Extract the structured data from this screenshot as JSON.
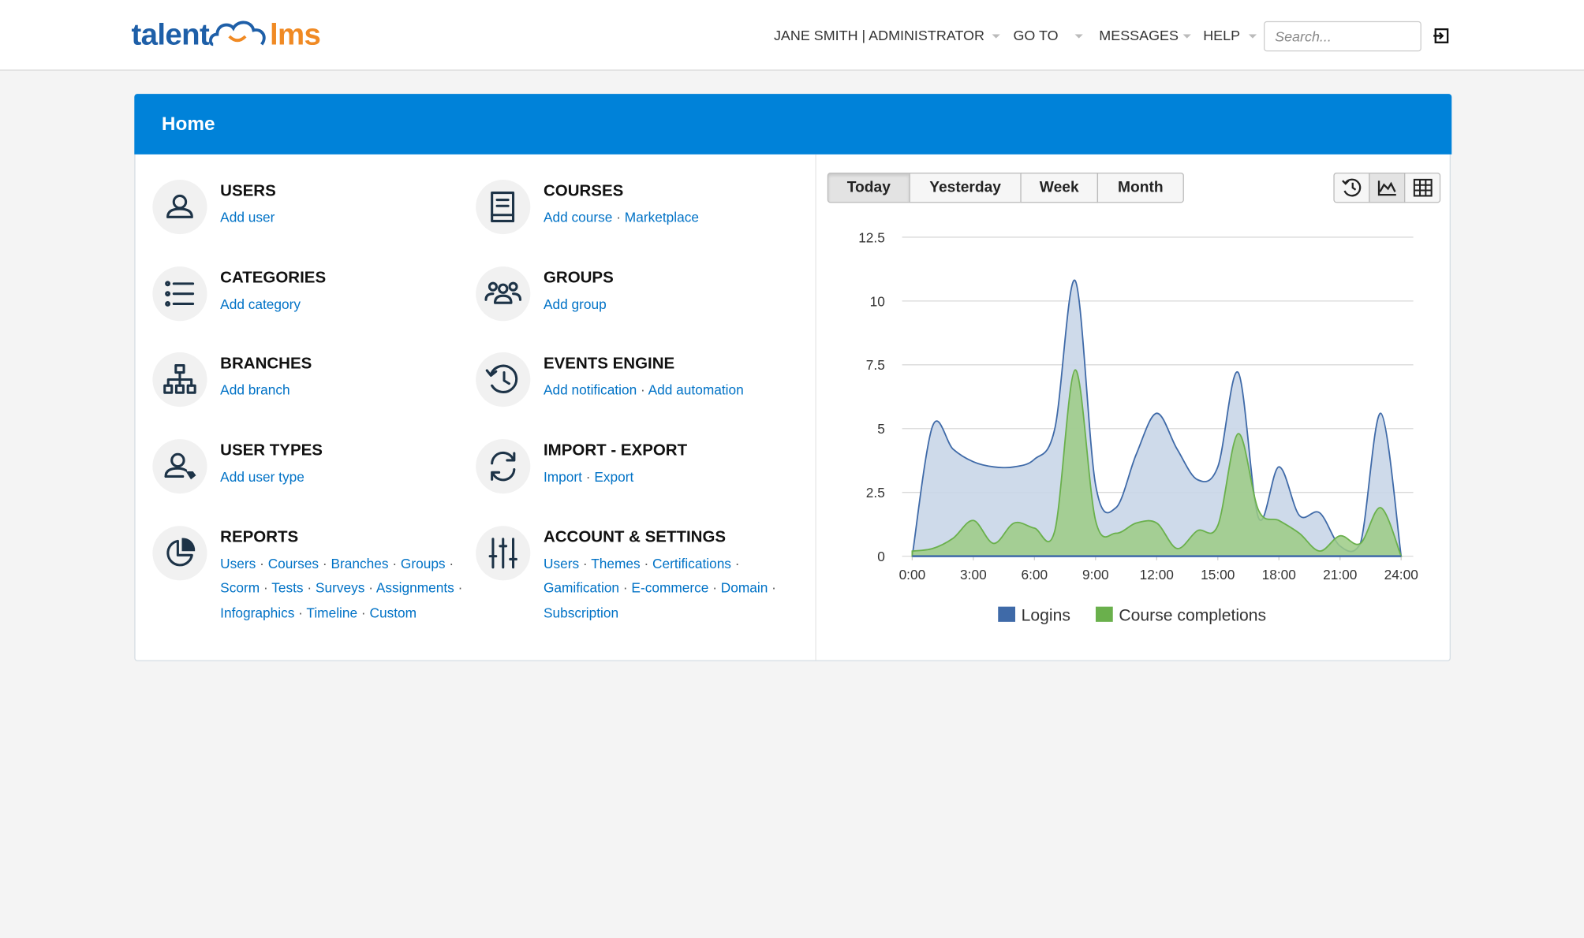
{
  "header": {
    "logo": {
      "left": "talent",
      "right": "lms"
    },
    "nav": [
      "JANE SMITH | ADMINISTRATOR",
      "GO TO",
      "MESSAGES",
      "HELP"
    ],
    "search_placeholder": "Search..."
  },
  "panel": {
    "title": "Home",
    "columns": [
      [
        {
          "title": "USERS",
          "links": [
            "Add user"
          ]
        },
        {
          "title": "CATEGORIES",
          "links": [
            "Add category"
          ]
        },
        {
          "title": "BRANCHES",
          "links": [
            "Add branch"
          ]
        },
        {
          "title": "USER TYPES",
          "links": [
            "Add user type"
          ]
        },
        {
          "title": "REPORTS",
          "links": [
            "Users",
            "Courses",
            "Branches",
            "Groups",
            "Scorm",
            "Tests",
            "Surveys",
            "Assignments",
            "Infographics",
            "Timeline",
            "Custom"
          ]
        }
      ],
      [
        {
          "title": "COURSES",
          "links": [
            "Add course",
            "Marketplace"
          ]
        },
        {
          "title": "GROUPS",
          "links": [
            "Add group"
          ]
        },
        {
          "title": "EVENTS ENGINE",
          "links": [
            "Add notification",
            "Add automation"
          ]
        },
        {
          "title": "IMPORT - EXPORT",
          "links": [
            "Import",
            "Export"
          ]
        },
        {
          "title": "ACCOUNT & SETTINGS",
          "links": [
            "Users",
            "Themes",
            "Certifications",
            "Gamification",
            "E-commerce",
            "Domain",
            "Subscription"
          ]
        }
      ]
    ]
  },
  "chart_controls": {
    "periods": [
      "Today",
      "Yesterday",
      "Week",
      "Month"
    ],
    "active": 0
  },
  "chart_data": {
    "type": "area",
    "x": [
      0,
      1,
      2,
      3,
      4,
      5,
      6,
      7,
      8,
      9,
      10,
      11,
      12,
      13,
      14,
      15,
      16,
      17,
      18,
      19,
      20,
      21,
      22,
      23,
      24
    ],
    "xlim": [
      0,
      24
    ],
    "xticks": [
      {
        "value": 0,
        "label": "0:00"
      },
      {
        "value": 3,
        "label": "3:00"
      },
      {
        "value": 6,
        "label": "6:00"
      },
      {
        "value": 9,
        "label": "9:00"
      },
      {
        "value": 12,
        "label": "12:00"
      },
      {
        "value": 15,
        "label": "15:00"
      },
      {
        "value": 18,
        "label": "18:00"
      },
      {
        "value": 21,
        "label": "21:00"
      },
      {
        "value": 24,
        "label": "24:00"
      }
    ],
    "ylim": [
      0,
      12.5
    ],
    "yticks": [
      0,
      2.5,
      5,
      7.5,
      10,
      12.5
    ],
    "grid": true,
    "legend": "bottom",
    "series": [
      {
        "name": "Logins",
        "color": "#3f6aa8",
        "values": [
          0,
          5.1,
          4.2,
          3.7,
          3.5,
          3.5,
          3.8,
          5,
          10.8,
          2.8,
          1.9,
          4,
          5.6,
          4.2,
          3,
          3.5,
          7.2,
          1.5,
          3.5,
          1.6,
          1.7,
          0.4,
          0.5,
          5.6,
          0
        ]
      },
      {
        "name": "Course completions",
        "color": "#6ab04c",
        "values": [
          0.2,
          0.3,
          0.7,
          1.4,
          0.5,
          1.3,
          1.1,
          1,
          7.3,
          1.4,
          0.9,
          1.3,
          1.3,
          0.3,
          1,
          1.2,
          4.8,
          1.8,
          1.4,
          0.9,
          0.2,
          0.8,
          0.5,
          1.9,
          0
        ]
      }
    ]
  }
}
